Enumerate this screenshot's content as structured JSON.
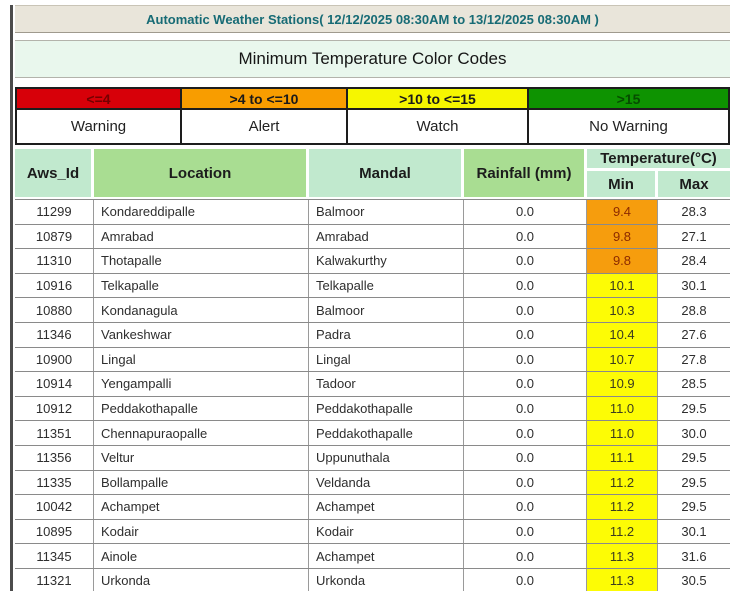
{
  "topbar": {
    "title": "Automatic Weather Stations( 12/12/2025 08:30AM to 13/12/2025 08:30AM )",
    "text_color": "#176b75",
    "background": "#e9e5da"
  },
  "section": {
    "title": "Minimum Temperature Color Codes",
    "background": "#e9f7ed"
  },
  "legend": {
    "ranges": [
      {
        "key": "warning",
        "label": "<=4",
        "category": "Warning",
        "color": "#d70009",
        "text_color": "#750000"
      },
      {
        "key": "alert",
        "label": ">4 to <=10",
        "category": "Alert",
        "color": "#f89d00",
        "text_color": "#1a1a1a"
      },
      {
        "key": "watch",
        "label": ">10 to <=15",
        "category": "Watch",
        "color": "#f6f600",
        "text_color": "#1a1a1a"
      },
      {
        "key": "no_warning",
        "label": ">15",
        "category": "No Warning",
        "color": "#0e9301",
        "text_color": "#054d00"
      }
    ]
  },
  "table": {
    "columns": {
      "aws_id": "Aws_Id",
      "location": "Location",
      "mandal": "Mandal",
      "rainfall": "Rainfall (mm)"
    },
    "temp_group": {
      "label": "Temperature(°C)",
      "min": "Min",
      "max": "Max"
    },
    "min_cell_colors": {
      "alert": {
        "background": "#f69d0d",
        "text": "#8c2a00"
      },
      "watch": {
        "background": "#fdfc05",
        "text": "#3c3c20"
      }
    },
    "rows": [
      {
        "aws_id": "11299",
        "location": "Kondareddipalle",
        "mandal": "Balmoor",
        "rainfall": "0.0",
        "min": "9.4",
        "max": "28.3",
        "min_level": "alert"
      },
      {
        "aws_id": "10879",
        "location": "Amrabad",
        "mandal": "Amrabad",
        "rainfall": "0.0",
        "min": "9.8",
        "max": "27.1",
        "min_level": "alert"
      },
      {
        "aws_id": "11310",
        "location": "Thotapalle",
        "mandal": "Kalwakurthy",
        "rainfall": "0.0",
        "min": "9.8",
        "max": "28.4",
        "min_level": "alert"
      },
      {
        "aws_id": "10916",
        "location": "Telkapalle",
        "mandal": "Telkapalle",
        "rainfall": "0.0",
        "min": "10.1",
        "max": "30.1",
        "min_level": "watch"
      },
      {
        "aws_id": "10880",
        "location": "Kondanagula",
        "mandal": "Balmoor",
        "rainfall": "0.0",
        "min": "10.3",
        "max": "28.8",
        "min_level": "watch"
      },
      {
        "aws_id": "11346",
        "location": "Vankeshwar",
        "mandal": "Padra",
        "rainfall": "0.0",
        "min": "10.4",
        "max": "27.6",
        "min_level": "watch"
      },
      {
        "aws_id": "10900",
        "location": "Lingal",
        "mandal": "Lingal",
        "rainfall": "0.0",
        "min": "10.7",
        "max": "27.8",
        "min_level": "watch"
      },
      {
        "aws_id": "10914",
        "location": "Yengampalli",
        "mandal": "Tadoor",
        "rainfall": "0.0",
        "min": "10.9",
        "max": "28.5",
        "min_level": "watch"
      },
      {
        "aws_id": "10912",
        "location": "Peddakothapalle",
        "mandal": "Peddakothapalle",
        "rainfall": "0.0",
        "min": "11.0",
        "max": "29.5",
        "min_level": "watch"
      },
      {
        "aws_id": "11351",
        "location": "Chennapuraopalle",
        "mandal": "Peddakothapalle",
        "rainfall": "0.0",
        "min": "11.0",
        "max": "30.0",
        "min_level": "watch"
      },
      {
        "aws_id": "11356",
        "location": "Veltur",
        "mandal": "Uppunuthala",
        "rainfall": "0.0",
        "min": "11.1",
        "max": "29.5",
        "min_level": "watch"
      },
      {
        "aws_id": "11335",
        "location": "Bollampalle",
        "mandal": "Veldanda",
        "rainfall": "0.0",
        "min": "11.2",
        "max": "29.5",
        "min_level": "watch"
      },
      {
        "aws_id": "10042",
        "location": "Achampet",
        "mandal": "Achampet",
        "rainfall": "0.0",
        "min": "11.2",
        "max": "29.5",
        "min_level": "watch"
      },
      {
        "aws_id": "10895",
        "location": "Kodair",
        "mandal": "Kodair",
        "rainfall": "0.0",
        "min": "11.2",
        "max": "30.1",
        "min_level": "watch"
      },
      {
        "aws_id": "11345",
        "location": "Ainole",
        "mandal": "Achampet",
        "rainfall": "0.0",
        "min": "11.3",
        "max": "31.6",
        "min_level": "watch"
      },
      {
        "aws_id": "11321",
        "location": "Urkonda",
        "mandal": "Urkonda",
        "rainfall": "0.0",
        "min": "11.3",
        "max": "30.5",
        "min_level": "watch"
      }
    ]
  }
}
